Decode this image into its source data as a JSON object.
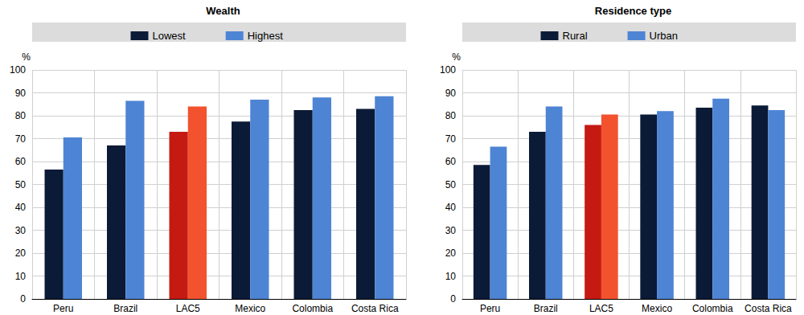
{
  "chart_data": [
    {
      "type": "bar",
      "title": "Wealth",
      "ylabel": "%",
      "categories": [
        "Peru",
        "Brazil",
        "LAC5",
        "Mexico",
        "Colombia",
        "Costa Rica"
      ],
      "series": [
        {
          "name": "Lowest",
          "color": "#0b1a36",
          "colors": [
            "#0b1a36",
            "#0b1a36",
            "#c41a12",
            "#0b1a36",
            "#0b1a36",
            "#0b1a36"
          ],
          "values": [
            56.5,
            67,
            73,
            77.5,
            82.5,
            83
          ]
        },
        {
          "name": "Highest",
          "color": "#4e84d4",
          "colors": [
            "#4e84d4",
            "#4e84d4",
            "#f2522e",
            "#4e84d4",
            "#4e84d4",
            "#4e84d4"
          ],
          "values": [
            70.5,
            86.5,
            84,
            87,
            88,
            88.5
          ]
        }
      ],
      "ylim": [
        0,
        100
      ],
      "yticks": [
        0,
        10,
        20,
        30,
        40,
        50,
        60,
        70,
        80,
        90,
        100
      ],
      "grid": true,
      "legend": "top"
    },
    {
      "type": "bar",
      "title": "Residence type",
      "ylabel": "%",
      "categories": [
        "Peru",
        "Brazil",
        "LAC5",
        "Mexico",
        "Colombia",
        "Costa Rica"
      ],
      "series": [
        {
          "name": "Rural",
          "color": "#0b1a36",
          "colors": [
            "#0b1a36",
            "#0b1a36",
            "#c41a12",
            "#0b1a36",
            "#0b1a36",
            "#0b1a36"
          ],
          "values": [
            58.5,
            73,
            76,
            80.5,
            83.5,
            84.5
          ]
        },
        {
          "name": "Urban",
          "color": "#4e84d4",
          "colors": [
            "#4e84d4",
            "#4e84d4",
            "#f2522e",
            "#4e84d4",
            "#4e84d4",
            "#4e84d4"
          ],
          "values": [
            66.5,
            84,
            80.5,
            82,
            87.5,
            82.5
          ]
        }
      ],
      "ylim": [
        0,
        100
      ],
      "yticks": [
        0,
        10,
        20,
        30,
        40,
        50,
        60,
        70,
        80,
        90,
        100
      ],
      "grid": true,
      "legend": "top"
    }
  ]
}
